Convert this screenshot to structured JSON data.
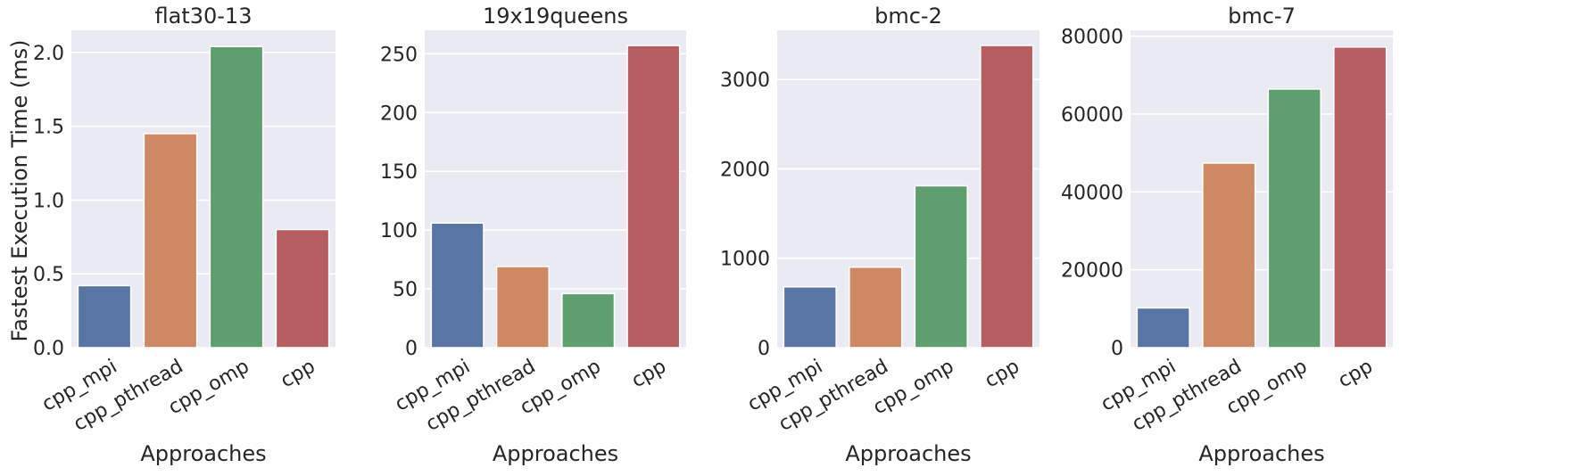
{
  "figure": {
    "ylabel": "Fastest Execution Time (ms)"
  },
  "colors": {
    "plot_background": "#eaeaf2",
    "grid": "#ffffff",
    "cpp_mpi": "#5875a4",
    "cpp_pthread": "#cc8963",
    "cpp_omp": "#5f9e6e",
    "cpp": "#b55d60"
  },
  "chart_data": [
    {
      "type": "bar",
      "title": "flat30-13",
      "xlabel": "Approaches",
      "ylabel": "Fastest Execution Time (ms)",
      "categories": [
        "cpp_mpi",
        "cpp_pthread",
        "cpp_omp",
        "cpp"
      ],
      "values": [
        0.42,
        1.45,
        2.04,
        0.8
      ],
      "ylim": [
        0,
        2.15
      ],
      "yticks": [
        0.0,
        0.5,
        1.0,
        1.5,
        2.0
      ],
      "ytick_labels": [
        "0.0",
        "0.5",
        "1.0",
        "1.5",
        "2.0"
      ],
      "grid": true
    },
    {
      "type": "bar",
      "title": "19x19queens",
      "xlabel": "Approaches",
      "ylabel": "",
      "categories": [
        "cpp_mpi",
        "cpp_pthread",
        "cpp_omp",
        "cpp"
      ],
      "values": [
        106,
        69,
        46,
        257
      ],
      "ylim": [
        0,
        270
      ],
      "yticks": [
        0,
        50,
        100,
        150,
        200,
        250
      ],
      "ytick_labels": [
        "0",
        "50",
        "100",
        "150",
        "200",
        "250"
      ],
      "grid": true
    },
    {
      "type": "bar",
      "title": "bmc-2",
      "xlabel": "Approaches",
      "ylabel": "",
      "categories": [
        "cpp_mpi",
        "cpp_pthread",
        "cpp_omp",
        "cpp"
      ],
      "values": [
        680,
        900,
        1810,
        3380
      ],
      "ylim": [
        0,
        3550
      ],
      "yticks": [
        0,
        1000,
        2000,
        3000
      ],
      "ytick_labels": [
        "0",
        "1000",
        "2000",
        "3000"
      ],
      "grid": true
    },
    {
      "type": "bar",
      "title": "bmc-7",
      "xlabel": "Approaches",
      "ylabel": "",
      "categories": [
        "cpp_mpi",
        "cpp_pthread",
        "cpp_omp",
        "cpp"
      ],
      "values": [
        10200,
        47400,
        66400,
        77200
      ],
      "ylim": [
        0,
        81500
      ],
      "yticks": [
        0,
        20000,
        40000,
        60000,
        80000
      ],
      "ytick_labels": [
        "0",
        "20000",
        "40000",
        "60000",
        "80000"
      ],
      "grid": true
    }
  ]
}
